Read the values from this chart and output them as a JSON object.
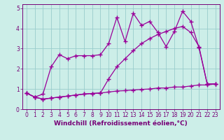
{
  "xlabel": "Windchill (Refroidissement éolien,°C)",
  "ylabel": "",
  "bg_color": "#cceee8",
  "line_color": "#990099",
  "grid_color": "#99cccc",
  "xlim": [
    -0.5,
    23.5
  ],
  "ylim": [
    0,
    5.2
  ],
  "xticks": [
    0,
    1,
    2,
    3,
    4,
    5,
    6,
    7,
    8,
    9,
    10,
    11,
    12,
    13,
    14,
    15,
    16,
    17,
    18,
    19,
    20,
    21,
    22,
    23
  ],
  "yticks": [
    0,
    1,
    2,
    3,
    4,
    5
  ],
  "line1_x": [
    0,
    1,
    2,
    3,
    4,
    5,
    6,
    7,
    8,
    9,
    10,
    11,
    12,
    13,
    14,
    15,
    16,
    17,
    18,
    19,
    20,
    21,
    22,
    23
  ],
  "line1_y": [
    0.8,
    0.6,
    0.5,
    0.55,
    0.6,
    0.65,
    0.7,
    0.75,
    0.78,
    0.8,
    0.85,
    0.9,
    0.92,
    0.95,
    0.98,
    1.0,
    1.05,
    1.05,
    1.1,
    1.1,
    1.15,
    1.2,
    1.2,
    1.25
  ],
  "line2_x": [
    0,
    1,
    2,
    3,
    4,
    5,
    6,
    7,
    8,
    9,
    10,
    11,
    12,
    13,
    14,
    15,
    16,
    17,
    18,
    19,
    20,
    21,
    22,
    23
  ],
  "line2_y": [
    0.8,
    0.6,
    0.5,
    0.55,
    0.6,
    0.65,
    0.7,
    0.75,
    0.78,
    0.8,
    1.5,
    2.1,
    2.5,
    2.9,
    3.25,
    3.5,
    3.7,
    3.85,
    4.0,
    4.1,
    3.8,
    3.1,
    1.25,
    1.25
  ],
  "line3_x": [
    0,
    1,
    2,
    3,
    4,
    5,
    6,
    7,
    8,
    9,
    10,
    11,
    12,
    13,
    14,
    15,
    16,
    17,
    18,
    19,
    20,
    21,
    22,
    23
  ],
  "line3_y": [
    0.8,
    0.6,
    0.75,
    2.1,
    2.7,
    2.5,
    2.65,
    2.65,
    2.65,
    2.7,
    3.25,
    4.55,
    3.35,
    4.75,
    4.15,
    4.35,
    3.8,
    3.1,
    3.85,
    4.85,
    4.35,
    3.05,
    1.25,
    1.25
  ],
  "marker": "+",
  "markersize": 4,
  "linewidth": 0.9,
  "xlabel_fontsize": 6.5,
  "tick_fontsize": 5.5,
  "axis_label_color": "#770077"
}
